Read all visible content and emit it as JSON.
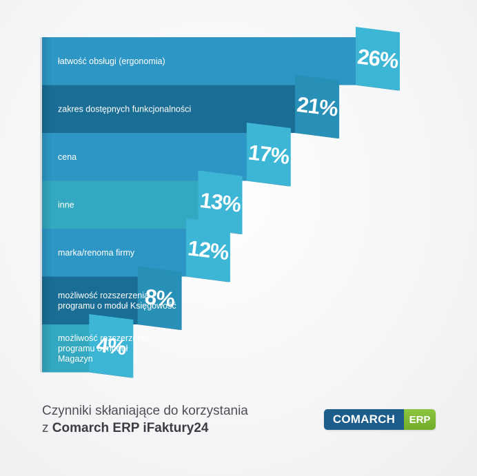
{
  "chart_data": {
    "type": "bar",
    "orientation": "horizontal",
    "categories": [
      "łatwość obsługi (ergonomia)",
      "zakres dostępnych funkcjonalności",
      "cena",
      "inne",
      "marka/renoma firmy",
      "możliwość rozszerzenia programu o moduł Księgowość",
      "możliwość rozszerzenia programu o moduł Magazyn"
    ],
    "category_lines": [
      [
        "łatwość obsługi (ergonomia)"
      ],
      [
        "zakres dostępnych funkcjonalności"
      ],
      [
        "cena"
      ],
      [
        "inne"
      ],
      [
        "marka/renoma firmy"
      ],
      [
        "możliwość rozszerzenia",
        "programu o moduł Księgowość"
      ],
      [
        "możliwość rozszerzenia",
        "programu o moduł",
        "Magazyn"
      ]
    ],
    "values": [
      26,
      21,
      17,
      13,
      12,
      8,
      4
    ],
    "value_labels": [
      "26%",
      "21%",
      "17%",
      "13%",
      "12%",
      "8%",
      "4%"
    ],
    "xlim": [
      0,
      26
    ],
    "legend": "none",
    "grid": false,
    "colors": {
      "bars": [
        "#2d96c4",
        "#1a6d94",
        "#2d96c4",
        "#33a8c0",
        "#2d96c4",
        "#1a6d94",
        "#33a8c0"
      ],
      "tabs": [
        "#3db6d6",
        "#2890b6",
        "#3db6d6",
        "#3db6d6",
        "#3db6d6",
        "#2890b6",
        "#3db6d6"
      ],
      "tab_shadow": "#17587a"
    }
  },
  "caption": {
    "line1": "Czynniki skłaniające do korzystania",
    "line2_prefix": "z ",
    "line2_bold": "Comarch ERP iFaktury24"
  },
  "logo": {
    "main": "COMARCH",
    "accent": "ERP",
    "main_color": "#1d5d8c",
    "accent_color": "#8cc63f"
  }
}
